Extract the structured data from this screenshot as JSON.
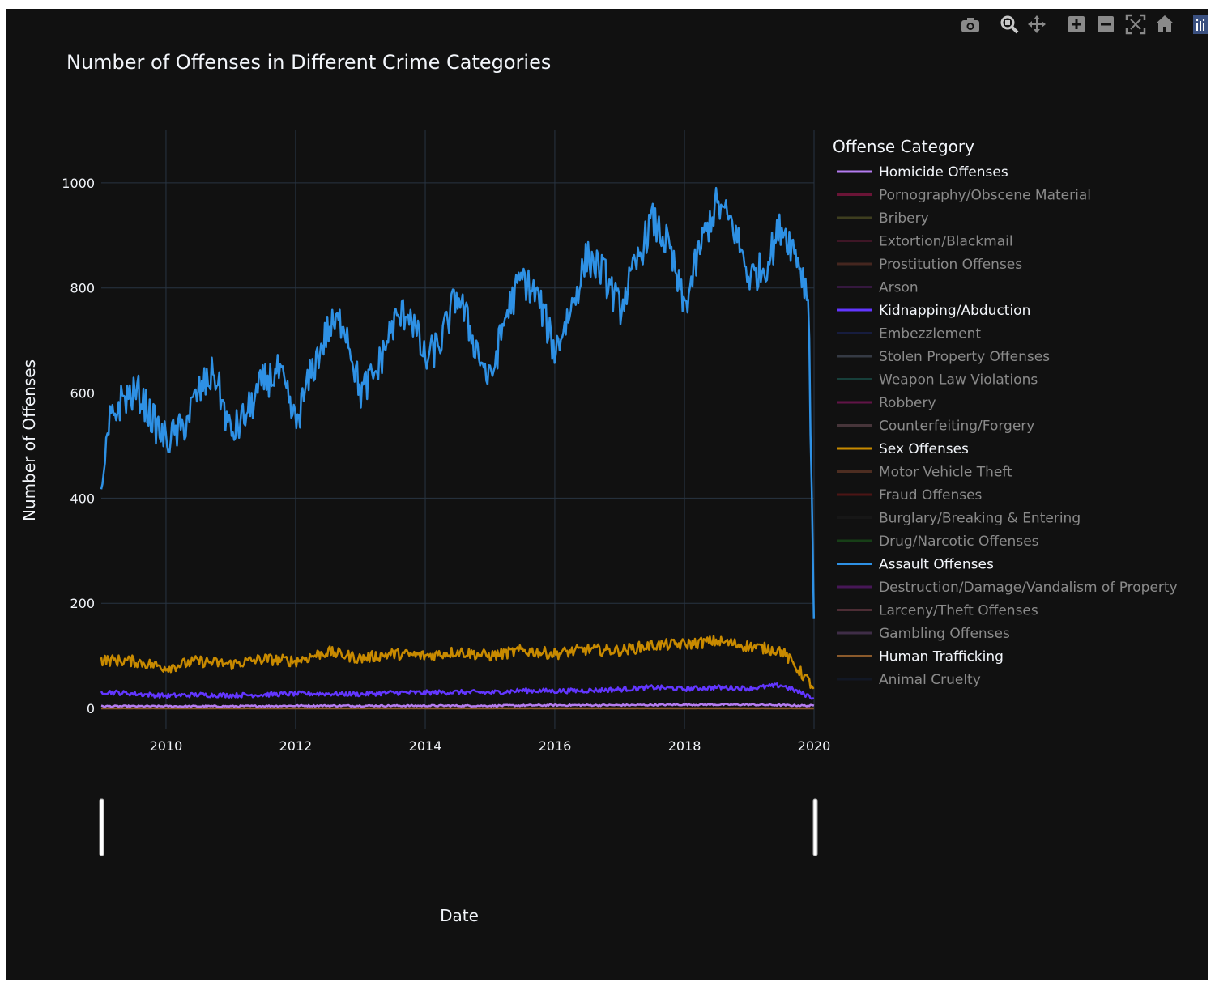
{
  "modebar": {
    "buttons": [
      "camera-icon",
      "zoom-icon",
      "pan-icon",
      "zoom-in-icon",
      "zoom-out-icon",
      "autoscale-icon",
      "reset-axes-icon",
      "plotly-logo-icon"
    ]
  },
  "colors": {
    "background": "#111111",
    "grid": "#283442",
    "text": "#f2f5fa",
    "legend_hidden_text": "#8a8a8a"
  },
  "chart_data": {
    "type": "line",
    "title": "Number of Offenses in Different Crime Categories",
    "xlabel": "Date",
    "ylabel": "Number of Offenses",
    "x_range": [
      "2009-01-01",
      "2020-01-01"
    ],
    "ylim": [
      -40,
      1100
    ],
    "x_ticks": [
      "2010",
      "2012",
      "2014",
      "2016",
      "2018",
      "2020"
    ],
    "y_ticks": [
      0,
      200,
      400,
      600,
      800,
      1000
    ],
    "grid": true,
    "legend": {
      "title": "Offense Category",
      "placement": "right"
    },
    "series": [
      {
        "name": "Homicide Offenses",
        "color": "#b47cf0",
        "visible": true,
        "x": [
          "2009-01-01",
          "2010-01-01",
          "2011-01-01",
          "2012-01-01",
          "2013-01-01",
          "2014-01-01",
          "2015-01-01",
          "2016-01-01",
          "2017-01-01",
          "2018-01-01",
          "2019-01-01",
          "2019-12-31"
        ],
        "y": [
          4,
          4,
          4,
          5,
          5,
          5,
          5,
          6,
          6,
          7,
          7,
          5
        ]
      },
      {
        "name": "Pornography/Obscene Material",
        "color": "#c2185b",
        "visible": false
      },
      {
        "name": "Bribery",
        "color": "#6b6b2e",
        "visible": false
      },
      {
        "name": "Extortion/Blackmail",
        "color": "#6e1b3c",
        "visible": false
      },
      {
        "name": "Prostitution Offenses",
        "color": "#7a3b2e",
        "visible": false
      },
      {
        "name": "Arson",
        "color": "#5a1f6e",
        "visible": false
      },
      {
        "name": "Kidnapping/Abduction",
        "color": "#6236ff",
        "visible": true,
        "x": [
          "2009-01-01",
          "2009-07-01",
          "2010-01-01",
          "2010-07-01",
          "2011-01-01",
          "2011-07-01",
          "2012-01-01",
          "2012-07-01",
          "2013-01-01",
          "2013-07-01",
          "2014-01-01",
          "2014-07-01",
          "2015-01-01",
          "2015-07-01",
          "2016-01-01",
          "2016-07-01",
          "2017-01-01",
          "2017-07-01",
          "2018-01-01",
          "2018-07-01",
          "2019-01-01",
          "2019-07-01",
          "2019-12-31"
        ],
        "y": [
          32,
          28,
          24,
          26,
          25,
          26,
          28,
          28,
          27,
          30,
          30,
          31,
          30,
          34,
          33,
          34,
          36,
          40,
          37,
          40,
          38,
          44,
          20
        ]
      },
      {
        "name": "Embezzlement",
        "color": "#1e2a6e",
        "visible": false
      },
      {
        "name": "Stolen Property Offenses",
        "color": "#5a6478",
        "visible": false
      },
      {
        "name": "Weapon Law Violations",
        "color": "#1e6e64",
        "visible": false
      },
      {
        "name": "Robbery",
        "color": "#b0187e",
        "visible": false
      },
      {
        "name": "Counterfeiting/Forgery",
        "color": "#7e5a64",
        "visible": false
      },
      {
        "name": "Sex Offenses",
        "color": "#c88a00",
        "visible": true,
        "x": [
          "2009-01-01",
          "2009-07-01",
          "2010-01-01",
          "2010-07-01",
          "2011-01-01",
          "2011-07-01",
          "2012-01-01",
          "2012-07-01",
          "2013-01-01",
          "2013-07-01",
          "2014-01-01",
          "2014-07-01",
          "2015-01-01",
          "2015-07-01",
          "2016-01-01",
          "2016-07-01",
          "2017-01-01",
          "2017-07-01",
          "2018-01-01",
          "2018-07-01",
          "2019-01-01",
          "2019-07-01",
          "2019-12-31"
        ],
        "y": [
          92,
          90,
          78,
          90,
          84,
          94,
          90,
          108,
          95,
          104,
          100,
          108,
          100,
          110,
          104,
          112,
          110,
          120,
          122,
          128,
          118,
          110,
          40
        ]
      },
      {
        "name": "Motor Vehicle Theft",
        "color": "#8a4a32",
        "visible": false
      },
      {
        "name": "Fraud Offenses",
        "color": "#8a1a1a",
        "visible": false
      },
      {
        "name": "Burglary/Breaking & Entering",
        "color": "#1e1e1e",
        "visible": false
      },
      {
        "name": "Drug/Narcotic Offenses",
        "color": "#1e6e1e",
        "visible": false
      },
      {
        "name": "Assault Offenses",
        "color": "#2e91e5",
        "visible": true,
        "x": [
          "2009-01-01",
          "2009-02-15",
          "2009-05-01",
          "2009-08-01",
          "2009-11-01",
          "2010-01-01",
          "2010-04-01",
          "2010-07-01",
          "2010-10-01",
          "2011-01-01",
          "2011-04-01",
          "2011-07-01",
          "2011-10-01",
          "2012-01-01",
          "2012-04-01",
          "2012-07-01",
          "2012-10-01",
          "2013-01-01",
          "2013-04-01",
          "2013-07-01",
          "2013-10-01",
          "2014-01-01",
          "2014-04-01",
          "2014-07-01",
          "2014-10-01",
          "2015-01-01",
          "2015-04-01",
          "2015-07-01",
          "2015-10-01",
          "2016-01-01",
          "2016-04-01",
          "2016-07-01",
          "2016-10-01",
          "2017-01-01",
          "2017-04-01",
          "2017-07-01",
          "2017-10-01",
          "2018-01-01",
          "2018-04-01",
          "2018-07-01",
          "2018-10-01",
          "2019-01-01",
          "2019-04-01",
          "2019-07-01",
          "2019-10-01",
          "2019-12-01",
          "2019-12-31"
        ],
        "y": [
          390,
          540,
          590,
          600,
          540,
          510,
          530,
          600,
          640,
          520,
          560,
          620,
          640,
          540,
          640,
          720,
          740,
          600,
          640,
          730,
          760,
          660,
          700,
          790,
          700,
          620,
          750,
          820,
          780,
          680,
          760,
          860,
          830,
          760,
          840,
          930,
          880,
          760,
          880,
          960,
          920,
          820,
          840,
          920,
          860,
          780,
          170
        ]
      },
      {
        "name": "Destruction/Damage/Vandalism of Property",
        "color": "#7e1e9c",
        "visible": false
      },
      {
        "name": "Larceny/Theft Offenses",
        "color": "#8a4a5a",
        "visible": false
      },
      {
        "name": "Gambling Offenses",
        "color": "#6e4a7e",
        "visible": false
      },
      {
        "name": "Human Trafficking",
        "color": "#8b5a2b",
        "visible": true,
        "x": [
          "2009-01-01",
          "2019-12-31"
        ],
        "y": [
          0,
          0
        ]
      },
      {
        "name": "Animal Cruelty",
        "color": "#14203a",
        "visible": false
      }
    ]
  }
}
